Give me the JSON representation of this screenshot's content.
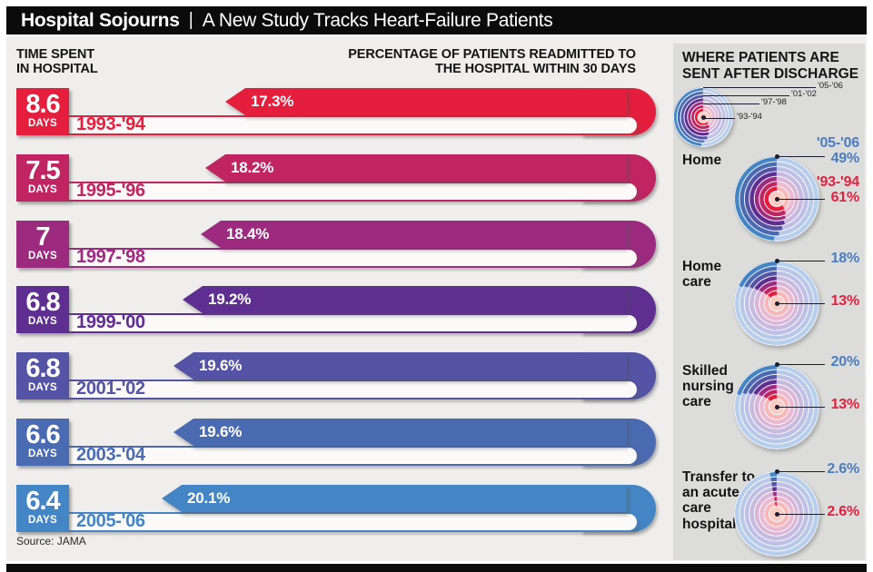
{
  "header": {
    "title_bold": "Hospital Sojourns",
    "title_sep": "|",
    "title_rest": "A New Study Tracks Heart-Failure Patients"
  },
  "columns": {
    "left_line1": "TIME SPENT",
    "left_line2": "IN HOSPITAL",
    "right_line1": "PERCENTAGE OF PATIENTS READMITTED TO",
    "right_line2": "THE HOSPITAL WITHIN 30 DAYS"
  },
  "rows": [
    {
      "days": "8.6",
      "unit": "DAYS",
      "period": "1993-'94",
      "pct": "17.3%",
      "value": 17.3,
      "color": "#e51e3d"
    },
    {
      "days": "7.5",
      "unit": "DAYS",
      "period": "1995-'96",
      "pct": "18.2%",
      "value": 18.2,
      "color": "#c02562"
    },
    {
      "days": "7",
      "unit": "DAYS",
      "period": "1997-'98",
      "pct": "18.4%",
      "value": 18.4,
      "color": "#9c2b80"
    },
    {
      "days": "6.8",
      "unit": "DAYS",
      "period": "1999-'00",
      "pct": "19.2%",
      "value": 19.2,
      "color": "#5e2e91"
    },
    {
      "days": "6.8",
      "unit": "DAYS",
      "period": "2001-'02",
      "pct": "19.6%",
      "value": 19.6,
      "color": "#5453a6"
    },
    {
      "days": "6.6",
      "unit": "DAYS",
      "period": "2003-'04",
      "pct": "19.6%",
      "value": 19.6,
      "color": "#4a6bb1"
    },
    {
      "days": "6.4",
      "unit": "DAYS",
      "period": "2005-'06",
      "pct": "20.1%",
      "value": 20.1,
      "color": "#4486c5"
    }
  ],
  "source": "Source: JAMA",
  "panel": {
    "header_line1": "WHERE PATIENTS ARE",
    "header_line2": "SENT AFTER DISCHARGE",
    "legend_labels": [
      "'05-'06",
      "'01-'02",
      "'97-'98",
      "'93-'94"
    ],
    "charts": [
      {
        "name_lines": [
          "Home"
        ],
        "new_year": "'05-'06",
        "new_pct": "49%",
        "new_value": 49,
        "old_year": "'93-'94",
        "old_pct": "61%",
        "old_value": 61,
        "show_years": true
      },
      {
        "name_lines": [
          "Home",
          "care"
        ],
        "new_pct": "18%",
        "new_value": 18,
        "old_pct": "13%",
        "old_value": 13,
        "show_years": false
      },
      {
        "name_lines": [
          "Skilled",
          "nursing",
          "care"
        ],
        "new_pct": "20%",
        "new_value": 20,
        "old_pct": "13%",
        "old_value": 13,
        "show_years": false
      },
      {
        "name_lines": [
          "Transfer to",
          "an acute-",
          "care",
          "hospital"
        ],
        "new_pct": "2.6%",
        "new_value": 2.6,
        "old_pct": "2.6%",
        "old_value": 2.6,
        "show_years": false
      }
    ]
  },
  "colors": {
    "ring_dark": [
      "#e51e3d",
      "#c02562",
      "#9c2b80",
      "#5e2e91",
      "#5453a6",
      "#4a6bb1",
      "#4486c5"
    ],
    "ring_light": [
      "#f6b8b8",
      "#eab9d2",
      "#d9b6d8",
      "#c6badf",
      "#bfc0e5",
      "#bac8e7",
      "#b7cfec"
    ],
    "ring_center": "#f9cdc3",
    "blue_label": "#4a7dbf",
    "red_label": "#e41f3e",
    "outline": "#23233a",
    "panel_bg": "#dcdcda",
    "main_bg": "#efeeec",
    "track_fill": "#fbfaf8"
  },
  "chart_data": [
    {
      "type": "bar",
      "title": "Hospital Sojourns | A New Study Tracks Heart-Failure Patients",
      "categories": [
        "1993-'94",
        "1995-'96",
        "1997-'98",
        "1999-'00",
        "2001-'02",
        "2003-'04",
        "2005-'06"
      ],
      "series": [
        {
          "name": "Time spent in hospital (days)",
          "values": [
            8.6,
            7.5,
            7,
            6.8,
            6.8,
            6.6,
            6.4
          ]
        },
        {
          "name": "Percentage of patients readmitted to the hospital within 30 days",
          "values": [
            17.3,
            18.2,
            18.4,
            19.2,
            19.6,
            19.6,
            20.1
          ]
        }
      ],
      "legend_position": "none",
      "source": "JAMA"
    },
    {
      "type": "pie",
      "subtype": "concentric-rings-percentage",
      "title": "Where patients are sent after discharge",
      "categories": [
        "Home",
        "Home care",
        "Skilled nursing care",
        "Transfer to an acute-care hospital"
      ],
      "series": [
        {
          "name": "'93-'94",
          "values": [
            61,
            13,
            13,
            2.6
          ]
        },
        {
          "name": "'05-'06",
          "values": [
            49,
            18,
            20,
            2.6
          ]
        }
      ],
      "unit": "%",
      "legend_entries": [
        "'05-'06",
        "'01-'02",
        "'97-'98",
        "'93-'94"
      ]
    }
  ]
}
